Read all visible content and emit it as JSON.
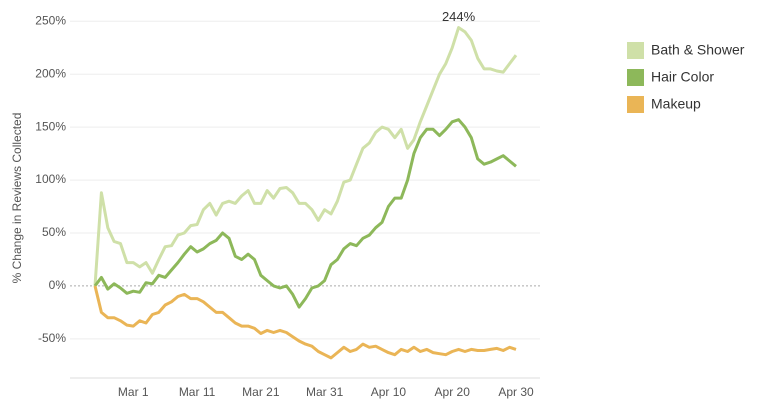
{
  "chart_data": {
    "type": "line",
    "y_axis_label": "% Change in Reviews Collected",
    "categories": [
      null,
      null,
      null,
      null,
      null,
      null,
      "Mar 1",
      null,
      null,
      null,
      null,
      null,
      null,
      null,
      null,
      null,
      "Mar 11",
      null,
      null,
      null,
      null,
      null,
      null,
      null,
      null,
      null,
      "Mar 21",
      null,
      null,
      null,
      null,
      null,
      null,
      null,
      null,
      null,
      "Mar 31",
      null,
      null,
      null,
      null,
      null,
      null,
      null,
      null,
      null,
      "Apr 10",
      null,
      null,
      null,
      null,
      null,
      null,
      null,
      null,
      null,
      "Apr 20",
      null,
      null,
      null,
      null,
      null,
      null,
      null,
      null,
      null,
      "Apr 30"
    ],
    "series": [
      {
        "name": "Bath & Shower",
        "color": "#cfe0a8",
        "values": [
          0,
          88,
          55,
          42,
          40,
          22,
          22,
          18,
          22,
          12,
          25,
          37,
          38,
          48,
          50,
          57,
          58,
          72,
          78,
          67,
          78,
          80,
          78,
          85,
          90,
          78,
          78,
          90,
          83,
          92,
          93,
          88,
          78,
          78,
          72,
          62,
          72,
          68,
          80,
          98,
          100,
          115,
          130,
          135,
          145,
          150,
          148,
          140,
          148,
          130,
          138,
          155,
          170,
          185,
          200,
          210,
          225,
          244,
          240,
          232,
          215,
          205,
          205,
          203,
          202,
          210,
          218
        ]
      },
      {
        "name": "Hair Color",
        "color": "#8db85a",
        "values": [
          0,
          8,
          -3,
          2,
          -2,
          -7,
          -5,
          -6,
          3,
          2,
          10,
          8,
          15,
          22,
          30,
          37,
          32,
          35,
          40,
          43,
          50,
          45,
          28,
          25,
          30,
          25,
          10,
          5,
          0,
          -2,
          0,
          -8,
          -20,
          -12,
          -2,
          0,
          5,
          20,
          25,
          35,
          40,
          38,
          45,
          48,
          55,
          60,
          75,
          83,
          83,
          100,
          125,
          140,
          148,
          148,
          142,
          148,
          155,
          157,
          150,
          140,
          120,
          115,
          117,
          120,
          123,
          118,
          113
        ]
      },
      {
        "name": "Makeup",
        "color": "#eab556",
        "values": [
          0,
          -25,
          -30,
          -30,
          -33,
          -37,
          -38,
          -33,
          -35,
          -27,
          -25,
          -18,
          -15,
          -10,
          -8,
          -12,
          -12,
          -15,
          -20,
          -25,
          -25,
          -30,
          -35,
          -38,
          -38,
          -40,
          -45,
          -42,
          -44,
          -42,
          -44,
          -48,
          -52,
          -55,
          -57,
          -62,
          -65,
          -68,
          -63,
          -58,
          -62,
          -60,
          -55,
          -58,
          -57,
          -60,
          -63,
          -65,
          -60,
          -62,
          -58,
          -62,
          -60,
          -63,
          -64,
          -65,
          -62,
          -60,
          -62,
          -60,
          -61,
          -61,
          -60,
          -59,
          -61,
          -58,
          -60
        ]
      }
    ],
    "annotations": [
      {
        "text": "244%",
        "value": 244
      }
    ],
    "ylim": [
      -87,
      255
    ],
    "yticks": [
      {
        "value": -50,
        "label": "-50%"
      },
      {
        "value": 0,
        "label": "0%"
      },
      {
        "value": 50,
        "label": "50%"
      },
      {
        "value": 100,
        "label": "100%"
      },
      {
        "value": 150,
        "label": "150%"
      },
      {
        "value": 200,
        "label": "200%"
      },
      {
        "value": 250,
        "label": "250%"
      }
    ],
    "grid": true
  }
}
